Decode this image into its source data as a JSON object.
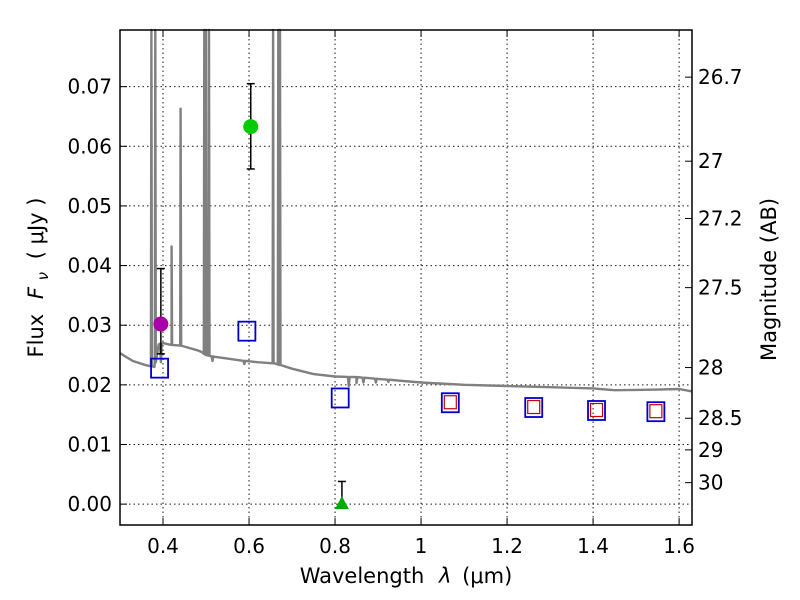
{
  "chart_data": {
    "type": "scatter",
    "xlabel_prefix": "Wavelength",
    "xlabel_symbol": "λ",
    "xlabel_unit": "(μm)",
    "ylabel_prefix": "Flux",
    "ylabel_symbol": "F",
    "ylabel_sub": "ν",
    "ylabel_unit": "( μJy )",
    "y2label": "Magnitude (AB)",
    "xlim": [
      0.3,
      1.63
    ],
    "ylim": [
      -0.0035,
      0.0795
    ],
    "grid": true,
    "x_ticks": [
      {
        "value": 0.4,
        "label": "0.4"
      },
      {
        "value": 0.6,
        "label": "0.6"
      },
      {
        "value": 0.8,
        "label": "0.8"
      },
      {
        "value": 1.0,
        "label": "1"
      },
      {
        "value": 1.2,
        "label": "1.2"
      },
      {
        "value": 1.4,
        "label": "1.4"
      },
      {
        "value": 1.6,
        "label": "1.6"
      }
    ],
    "y_ticks": [
      {
        "value": 0.0,
        "label": "0.00"
      },
      {
        "value": 0.01,
        "label": "0.01"
      },
      {
        "value": 0.02,
        "label": "0.02"
      },
      {
        "value": 0.03,
        "label": "0.03"
      },
      {
        "value": 0.04,
        "label": "0.04"
      },
      {
        "value": 0.05,
        "label": "0.05"
      },
      {
        "value": 0.06,
        "label": "0.06"
      },
      {
        "value": 0.07,
        "label": "0.07"
      }
    ],
    "y2_ticks": [
      {
        "flux": 0.0716,
        "label": "26.7"
      },
      {
        "flux": 0.0575,
        "label": "27"
      },
      {
        "flux": 0.0479,
        "label": "27.2"
      },
      {
        "flux": 0.0363,
        "label": "27.5"
      },
      {
        "flux": 0.0229,
        "label": "28"
      },
      {
        "flux": 0.0144,
        "label": "28.5"
      },
      {
        "flux": 0.0091,
        "label": "29"
      },
      {
        "flux": 0.0036,
        "label": "30"
      }
    ],
    "template_spectrum": {
      "color": "#808080",
      "continuum": [
        [
          0.3,
          0.0253
        ],
        [
          0.33,
          0.024
        ],
        [
          0.36,
          0.0233
        ],
        [
          0.38,
          0.023
        ],
        [
          0.39,
          0.0268
        ],
        [
          0.4,
          0.027
        ],
        [
          0.42,
          0.0267
        ],
        [
          0.44,
          0.0266
        ],
        [
          0.46,
          0.0262
        ],
        [
          0.48,
          0.0258
        ],
        [
          0.49,
          0.0255
        ],
        [
          0.5,
          0.025
        ],
        [
          0.52,
          0.0247
        ],
        [
          0.55,
          0.0244
        ],
        [
          0.58,
          0.0241
        ],
        [
          0.62,
          0.0238
        ],
        [
          0.66,
          0.0236
        ],
        [
          0.7,
          0.0227
        ],
        [
          0.75,
          0.0218
        ],
        [
          0.8,
          0.0214
        ],
        [
          0.85,
          0.0213
        ],
        [
          0.9,
          0.021
        ],
        [
          0.95,
          0.0207
        ],
        [
          1.0,
          0.0204
        ],
        [
          1.1,
          0.02
        ],
        [
          1.2,
          0.0198
        ],
        [
          1.3,
          0.0196
        ],
        [
          1.4,
          0.0194
        ],
        [
          1.45,
          0.0191
        ],
        [
          1.55,
          0.0192
        ],
        [
          1.6,
          0.0193
        ],
        [
          1.63,
          0.0189
        ]
      ],
      "emission_lines": [
        {
          "x": 0.373,
          "peak": 0.0795
        },
        {
          "x": 0.382,
          "peak": 0.0795
        },
        {
          "x": 0.42,
          "peak": 0.0432
        },
        {
          "x": 0.441,
          "peak": 0.0663
        },
        {
          "x": 0.496,
          "peak": 0.0795
        },
        {
          "x": 0.5,
          "peak": 0.0795
        },
        {
          "x": 0.507,
          "peak": 0.0795
        },
        {
          "x": 0.656,
          "peak": 0.0795
        },
        {
          "x": 0.668,
          "peak": 0.0795
        },
        {
          "x": 0.672,
          "peak": 0.0795
        }
      ],
      "absorption_dips": [
        {
          "x": 0.395,
          "depth": 0.0238
        },
        {
          "x": 0.515,
          "depth": 0.024
        },
        {
          "x": 0.589,
          "depth": 0.0235
        },
        {
          "x": 0.832,
          "depth": 0.0198
        },
        {
          "x": 0.85,
          "depth": 0.0203
        },
        {
          "x": 0.866,
          "depth": 0.0204
        },
        {
          "x": 0.895,
          "depth": 0.0204
        },
        {
          "x": 0.924,
          "depth": 0.0205
        }
      ]
    },
    "model_points": {
      "color": "#0000cc",
      "points": [
        {
          "x": 0.392,
          "y": 0.0228
        },
        {
          "x": 0.595,
          "y": 0.029
        },
        {
          "x": 0.812,
          "y": 0.0178
        },
        {
          "x": 1.068,
          "y": 0.017
        },
        {
          "x": 1.262,
          "y": 0.0162
        },
        {
          "x": 1.408,
          "y": 0.0157
        },
        {
          "x": 1.546,
          "y": 0.0155
        }
      ]
    },
    "model_points_inner": {
      "color": "#cc0000",
      "points": [
        {
          "x": 1.068,
          "y": 0.017
        },
        {
          "x": 1.262,
          "y": 0.0162
        },
        {
          "x": 1.408,
          "y": 0.0157
        },
        {
          "x": 1.546,
          "y": 0.0155
        }
      ]
    },
    "observations": [
      {
        "x": 0.395,
        "y": 0.0302,
        "err_low": 0.0252,
        "err_high": 0.0395,
        "marker": "circle",
        "color": "#aa00aa"
      },
      {
        "x": 0.604,
        "y": 0.0633,
        "err_low": 0.0562,
        "err_high": 0.0705,
        "marker": "circle",
        "color": "#00cc00"
      },
      {
        "x": 0.816,
        "y": 0.0,
        "err_low": 0.0,
        "err_high": 0.0038,
        "marker": "triangle",
        "color": "#00aa00"
      }
    ]
  }
}
